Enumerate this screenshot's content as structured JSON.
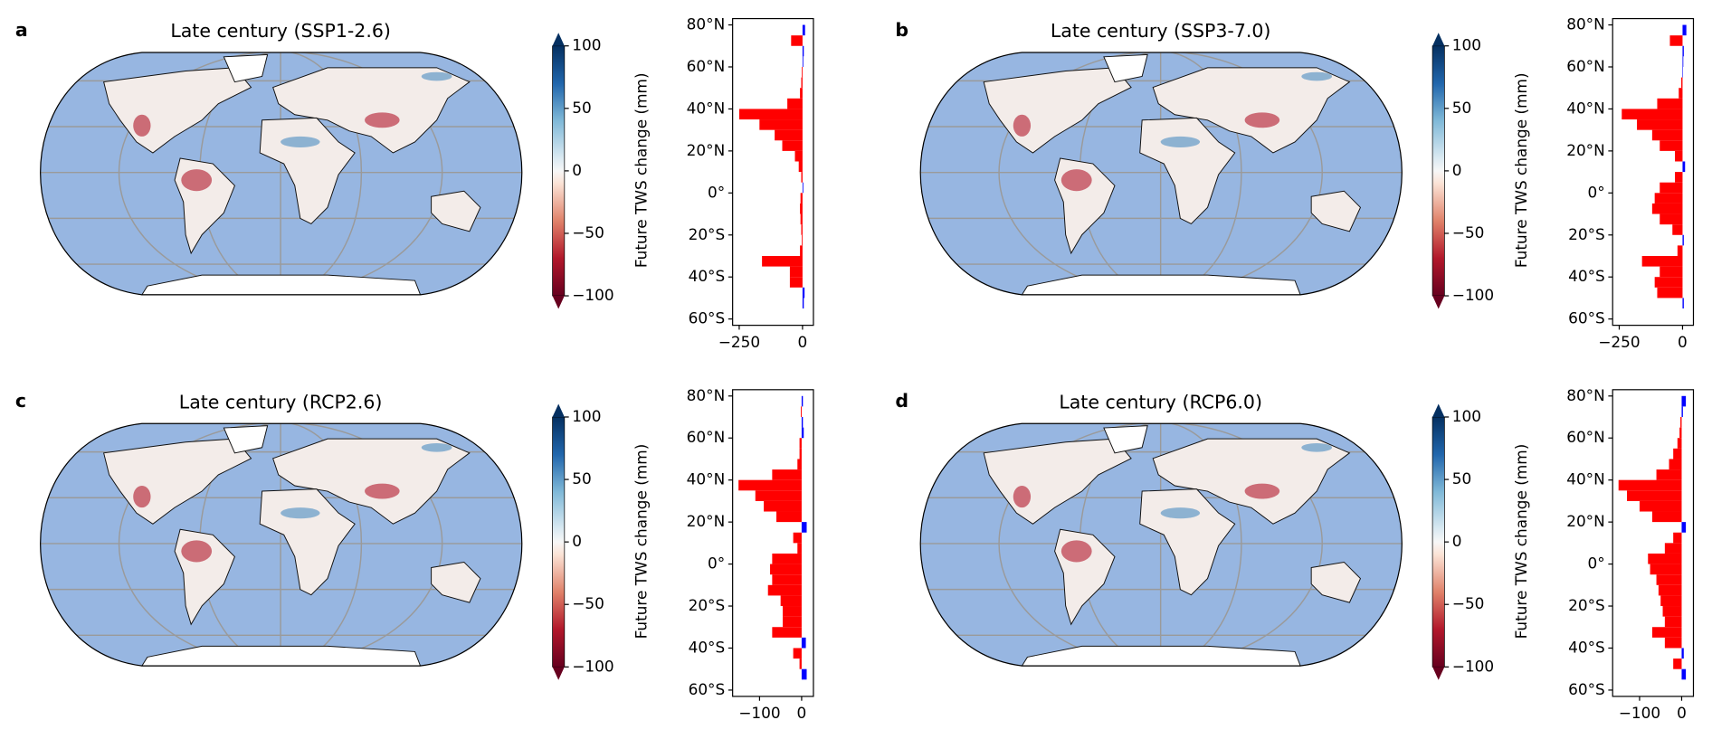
{
  "chart_data": [
    {
      "type": "hbar",
      "panel_label": "a",
      "title": "Late century (SSP1-2.6)",
      "colorbar": {
        "label": "Future TWS change (mm)",
        "lim": [
          -100,
          100
        ],
        "ticks": [
          {
            "value": -100,
            "label": "−100"
          },
          {
            "value": -50,
            "label": "−50"
          },
          0,
          50,
          100
        ]
      },
      "y": [
        77.5,
        72.5,
        67.5,
        62.5,
        57.5,
        52.5,
        47.5,
        42.5,
        37.5,
        32.5,
        27.5,
        22.5,
        17.5,
        12.5,
        7.5,
        2.5,
        -2.5,
        -7.5,
        -12.5,
        -17.5,
        -22.5,
        -27.5,
        -32.5,
        -37.5,
        -42.5,
        -47.5,
        -52.5
      ],
      "values": [
        10,
        -45,
        5,
        3,
        -3,
        -5,
        -10,
        -60,
        -250,
        -170,
        -110,
        -80,
        -30,
        -15,
        -5,
        3,
        -8,
        -10,
        -8,
        -5,
        -3,
        -10,
        -160,
        -50,
        -50,
        8,
        5
      ],
      "xlim": [
        -276,
        43
      ],
      "xticks": [
        {
          "value": -250,
          "label": "−250"
        },
        0
      ],
      "ylim": [
        -63,
        83
      ],
      "yticks": [
        {
          "value": 80,
          "label": "80°N"
        },
        {
          "value": 60,
          "label": "60°N"
        },
        {
          "value": 40,
          "label": "40°N"
        },
        {
          "value": 20,
          "label": "20°N"
        },
        {
          "value": 0,
          "label": "0°"
        },
        {
          "value": -20,
          "label": "20°S"
        },
        {
          "value": -40,
          "label": "40°S"
        },
        {
          "value": -60,
          "label": "60°S"
        }
      ],
      "neg_color": "#ff0000",
      "pos_color": "#0000ff"
    },
    {
      "type": "hbar",
      "panel_label": "b",
      "title": "Late century (SSP3-7.0)",
      "colorbar": {
        "label": "Future TWS change (mm)",
        "lim": [
          -100,
          100
        ],
        "ticks": [
          {
            "value": -100,
            "label": "−100"
          },
          {
            "value": -50,
            "label": "−50"
          },
          0,
          50,
          100
        ]
      },
      "y": [
        77.5,
        72.5,
        67.5,
        62.5,
        57.5,
        52.5,
        47.5,
        42.5,
        37.5,
        32.5,
        27.5,
        22.5,
        17.5,
        12.5,
        7.5,
        2.5,
        -2.5,
        -7.5,
        -12.5,
        -17.5,
        -22.5,
        -27.5,
        -32.5,
        -37.5,
        -42.5,
        -47.5,
        -52.5
      ],
      "values": [
        15,
        -50,
        5,
        3,
        2,
        -5,
        -15,
        -100,
        -240,
        -180,
        -120,
        -90,
        -30,
        10,
        -30,
        -90,
        -110,
        -120,
        -90,
        -40,
        5,
        -20,
        -160,
        -90,
        -110,
        -100,
        5
      ],
      "xlim": [
        -276,
        43
      ],
      "xticks": [
        {
          "value": -250,
          "label": "−250"
        },
        0
      ],
      "ylim": [
        -63,
        83
      ],
      "yticks": [
        {
          "value": 80,
          "label": "80°N"
        },
        {
          "value": 60,
          "label": "60°N"
        },
        {
          "value": 40,
          "label": "40°N"
        },
        {
          "value": 20,
          "label": "20°N"
        },
        {
          "value": 0,
          "label": "0°"
        },
        {
          "value": -20,
          "label": "20°S"
        },
        {
          "value": -40,
          "label": "40°S"
        },
        {
          "value": -60,
          "label": "60°S"
        }
      ],
      "neg_color": "#ff0000",
      "pos_color": "#0000ff"
    },
    {
      "type": "hbar",
      "panel_label": "c",
      "title": "Late century (RCP2.6)",
      "colorbar": {
        "label": "Future TWS change (mm)",
        "lim": [
          -100,
          100
        ],
        "ticks": [
          {
            "value": -100,
            "label": "−100"
          },
          {
            "value": -50,
            "label": "−50"
          },
          0,
          50,
          100
        ]
      },
      "y": [
        77.5,
        72.5,
        67.5,
        62.5,
        57.5,
        52.5,
        47.5,
        42.5,
        37.5,
        32.5,
        27.5,
        22.5,
        17.5,
        12.5,
        7.5,
        2.5,
        -2.5,
        -7.5,
        -12.5,
        -17.5,
        -22.5,
        -27.5,
        -32.5,
        -37.5,
        -42.5,
        -47.5,
        -52.5
      ],
      "values": [
        3,
        -2,
        3,
        5,
        -5,
        -5,
        -10,
        -70,
        -150,
        -110,
        -90,
        -60,
        12,
        -20,
        -10,
        -70,
        -75,
        -70,
        -80,
        -50,
        -45,
        -45,
        -70,
        10,
        -20,
        -5,
        12
      ],
      "xlim": [
        -164,
        28
      ],
      "xticks": [
        {
          "value": -100,
          "label": "−100"
        },
        0
      ],
      "ylim": [
        -63,
        83
      ],
      "yticks": [
        {
          "value": 80,
          "label": "80°N"
        },
        {
          "value": 60,
          "label": "60°N"
        },
        {
          "value": 40,
          "label": "40°N"
        },
        {
          "value": 20,
          "label": "20°N"
        },
        {
          "value": 0,
          "label": "0°"
        },
        {
          "value": -20,
          "label": "20°S"
        },
        {
          "value": -40,
          "label": "40°S"
        },
        {
          "value": -60,
          "label": "60°S"
        }
      ],
      "neg_color": "#ff0000",
      "pos_color": "#0000ff"
    },
    {
      "type": "hbar",
      "panel_label": "d",
      "title": "Late century (RCP6.0)",
      "colorbar": {
        "label": "Future TWS change (mm)",
        "lim": [
          -100,
          100
        ],
        "ticks": [
          {
            "value": -100,
            "label": "−100"
          },
          {
            "value": -50,
            "label": "−50"
          },
          0,
          50,
          100
        ]
      },
      "y": [
        77.5,
        72.5,
        67.5,
        62.5,
        57.5,
        52.5,
        47.5,
        42.5,
        37.5,
        32.5,
        27.5,
        22.5,
        17.5,
        12.5,
        7.5,
        2.5,
        -2.5,
        -7.5,
        -12.5,
        -17.5,
        -22.5,
        -27.5,
        -32.5,
        -37.5,
        -42.5,
        -47.5,
        -52.5
      ],
      "values": [
        10,
        3,
        -3,
        -5,
        -10,
        -20,
        -30,
        -60,
        -150,
        -130,
        -100,
        -70,
        10,
        -20,
        -40,
        -80,
        -75,
        -60,
        -55,
        -50,
        -45,
        -40,
        -70,
        -40,
        5,
        -20,
        10
      ],
      "xlim": [
        -164,
        28
      ],
      "xticks": [
        {
          "value": -100,
          "label": "−100"
        },
        0
      ],
      "ylim": [
        -63,
        83
      ],
      "yticks": [
        {
          "value": 80,
          "label": "80°N"
        },
        {
          "value": 60,
          "label": "60°N"
        },
        {
          "value": 40,
          "label": "40°N"
        },
        {
          "value": 20,
          "label": "20°N"
        },
        {
          "value": 0,
          "label": "0°"
        },
        {
          "value": -20,
          "label": "20°S"
        },
        {
          "value": -40,
          "label": "40°S"
        },
        {
          "value": -60,
          "label": "60°S"
        }
      ],
      "neg_color": "#ff0000",
      "pos_color": "#0000ff"
    }
  ]
}
